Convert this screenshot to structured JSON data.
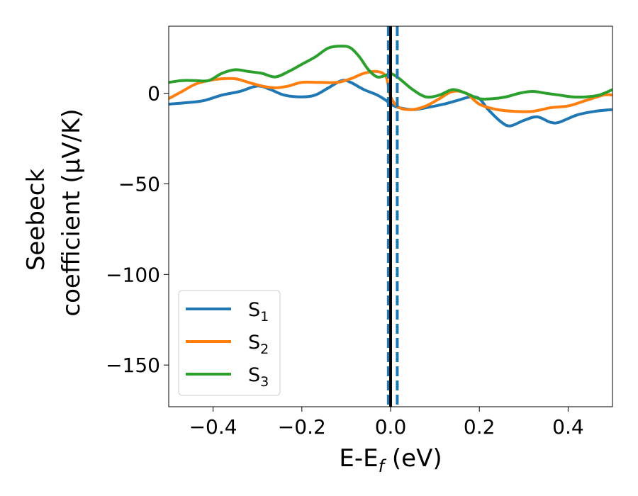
{
  "chart_data": {
    "type": "line",
    "xlabel_main": "E-E",
    "xlabel_sub": "f",
    "xlabel_unit": " (eV)",
    "ylabel_line1": "Seebeck",
    "ylabel_line2": "coefficient  (μV/K)",
    "xlim": [
      -0.5,
      0.5
    ],
    "ylim": [
      -173,
      37
    ],
    "xticks": [
      -0.4,
      -0.2,
      0.0,
      0.2,
      0.4
    ],
    "xtick_labels": [
      "−0.4",
      "−0.2",
      "0.0",
      "0.2",
      "0.4"
    ],
    "yticks": [
      0,
      -50,
      -100,
      -150
    ],
    "ytick_labels": [
      "0",
      "−50",
      "−100",
      "−150"
    ],
    "grid": false,
    "legend_position": "lower-left",
    "vlines": [
      {
        "x": 0.0,
        "color": "#000000",
        "style": "solid"
      },
      {
        "x": -0.005,
        "color": "#1f77b4",
        "style": "dashed"
      },
      {
        "x": 0.015,
        "color": "#1f77b4",
        "style": "dashed"
      }
    ],
    "series": [
      {
        "name": "S",
        "sub": "1",
        "color": "#1f77b4",
        "x": [
          -0.5,
          -0.45,
          -0.42,
          -0.38,
          -0.34,
          -0.3,
          -0.27,
          -0.24,
          -0.2,
          -0.17,
          -0.14,
          -0.11,
          -0.09,
          -0.06,
          -0.03,
          -0.01,
          0.0,
          0.02,
          0.05,
          0.08,
          0.12,
          0.15,
          0.18,
          0.2,
          0.22,
          0.25,
          0.27,
          0.3,
          0.33,
          0.36,
          0.38,
          0.42,
          0.46,
          0.5
        ],
        "y": [
          -6,
          -5,
          -4,
          -1,
          1,
          4,
          2,
          -1,
          -2,
          -1,
          3,
          7,
          6,
          2,
          -1,
          -4,
          -6,
          -8,
          -9,
          -8,
          -6,
          -4,
          -2,
          -3,
          -9,
          -16,
          -18,
          -15,
          -13,
          -16,
          -16,
          -12,
          -10,
          -9
        ]
      },
      {
        "name": "S",
        "sub": "2",
        "color": "#ff7f0e",
        "x": [
          -0.5,
          -0.47,
          -0.44,
          -0.41,
          -0.38,
          -0.35,
          -0.32,
          -0.29,
          -0.26,
          -0.23,
          -0.2,
          -0.16,
          -0.12,
          -0.09,
          -0.06,
          -0.03,
          -0.01,
          0.0,
          0.02,
          0.05,
          0.08,
          0.11,
          0.14,
          0.17,
          0.2,
          0.24,
          0.28,
          0.32,
          0.36,
          0.4,
          0.44,
          0.48,
          0.5
        ],
        "y": [
          -3,
          1,
          5,
          7,
          8,
          8,
          6,
          4,
          3,
          4,
          6,
          6,
          6,
          8,
          11,
          12,
          9,
          -2,
          -8,
          -9,
          -7,
          -3,
          1,
          0,
          -6,
          -9,
          -10,
          -10,
          -8,
          -7,
          -4,
          -1,
          -1
        ]
      },
      {
        "name": "S",
        "sub": "3",
        "color": "#2ca02c",
        "x": [
          -0.5,
          -0.47,
          -0.44,
          -0.41,
          -0.38,
          -0.35,
          -0.32,
          -0.29,
          -0.26,
          -0.23,
          -0.2,
          -0.17,
          -0.14,
          -0.11,
          -0.09,
          -0.07,
          -0.05,
          -0.03,
          -0.01,
          0.0,
          0.02,
          0.05,
          0.08,
          0.11,
          0.14,
          0.17,
          0.2,
          0.23,
          0.26,
          0.29,
          0.32,
          0.35,
          0.38,
          0.41,
          0.44,
          0.47,
          0.5
        ],
        "y": [
          6,
          7,
          7,
          7,
          11,
          13,
          12,
          11,
          9,
          12,
          16,
          20,
          25,
          26,
          25,
          20,
          13,
          9,
          10,
          11,
          8,
          2,
          -2,
          -1,
          2,
          0,
          -3,
          -3,
          -2,
          0,
          1,
          0,
          -1,
          -2,
          -2,
          -1,
          2
        ]
      }
    ]
  }
}
